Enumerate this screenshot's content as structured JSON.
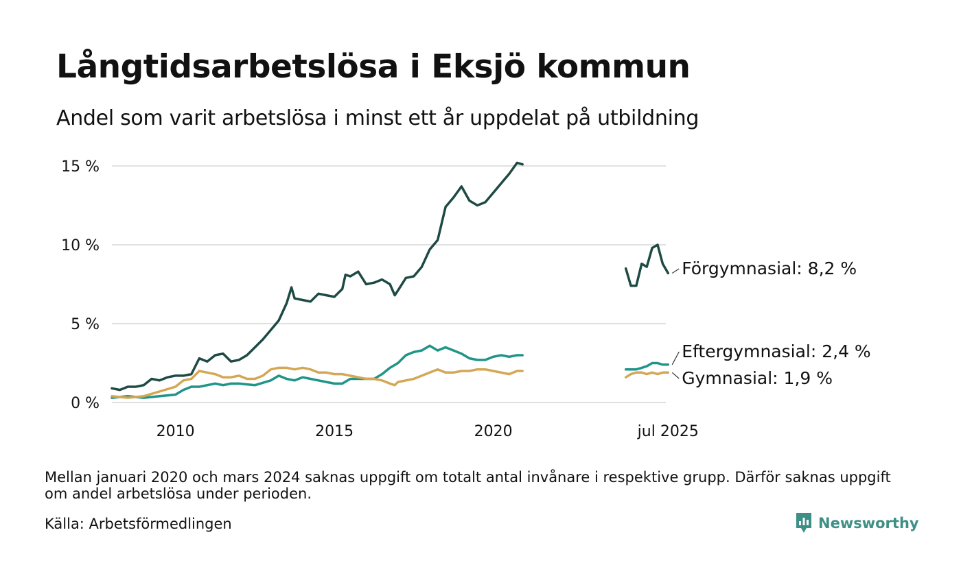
{
  "title": "Långtidsarbetslösa i Eksjö kommun",
  "subtitle": "Andel som varit arbetslösa i minst ett år uppdelat på utbildning",
  "note": "Mellan januari 2020 och mars 2024 saknas uppgift om totalt antal invånare i respektive grupp. Därför saknas uppgift om andel arbetslösa under perioden.",
  "source": "Källa: Arbetsförmedlingen",
  "brand": {
    "name": "Newsworthy",
    "icon": "newsworthy-logo-icon",
    "color": "#3e8f86"
  },
  "chart_data": {
    "type": "line",
    "title": "Långtidsarbetslösa i Eksjö kommun",
    "subtitle": "Andel som varit arbetslösa i minst ett år uppdelat på utbildning",
    "xlabel": "",
    "ylabel": "",
    "x_unit": "year (decimal)",
    "xlim": [
      2008.0,
      2025.75
    ],
    "ylim": [
      0,
      15
    ],
    "y_ticks": [
      {
        "value": 0,
        "label": "0 %"
      },
      {
        "value": 5,
        "label": "5 %"
      },
      {
        "value": 10,
        "label": "10 %"
      },
      {
        "value": 15,
        "label": "15 %"
      }
    ],
    "x_ticks": [
      {
        "value": 2010,
        "label": "2010"
      },
      {
        "value": 2015,
        "label": "2015"
      },
      {
        "value": 2020,
        "label": "2020"
      },
      {
        "value": 2025.5,
        "label": "jul 2025"
      }
    ],
    "grid": "horizontal",
    "legend": "direct labels at right end of lines",
    "gap": {
      "from": 2020.92,
      "to": 2024.17
    },
    "series": [
      {
        "name": "Förgymnasial",
        "label": "Förgymnasial: 8,2 %",
        "color": "#1e4a44",
        "segments": [
          [
            [
              2008.0,
              0.9
            ],
            [
              2008.25,
              0.8
            ],
            [
              2008.5,
              1.0
            ],
            [
              2008.75,
              1.0
            ],
            [
              2009.0,
              1.1
            ],
            [
              2009.25,
              1.5
            ],
            [
              2009.5,
              1.4
            ],
            [
              2009.75,
              1.6
            ],
            [
              2010.0,
              1.7
            ],
            [
              2010.25,
              1.7
            ],
            [
              2010.5,
              1.8
            ],
            [
              2010.75,
              2.8
            ],
            [
              2011.0,
              2.6
            ],
            [
              2011.25,
              3.0
            ],
            [
              2011.5,
              3.1
            ],
            [
              2011.75,
              2.6
            ],
            [
              2012.0,
              2.7
            ],
            [
              2012.25,
              3.0
            ],
            [
              2012.5,
              3.5
            ],
            [
              2012.75,
              4.0
            ],
            [
              2013.0,
              4.6
            ],
            [
              2013.25,
              5.2
            ],
            [
              2013.5,
              6.3
            ],
            [
              2013.65,
              7.3
            ],
            [
              2013.75,
              6.6
            ],
            [
              2014.0,
              6.5
            ],
            [
              2014.25,
              6.4
            ],
            [
              2014.5,
              6.9
            ],
            [
              2014.75,
              6.8
            ],
            [
              2015.0,
              6.7
            ],
            [
              2015.25,
              7.2
            ],
            [
              2015.35,
              8.1
            ],
            [
              2015.5,
              8.0
            ],
            [
              2015.75,
              8.3
            ],
            [
              2016.0,
              7.5
            ],
            [
              2016.25,
              7.6
            ],
            [
              2016.5,
              7.8
            ],
            [
              2016.75,
              7.5
            ],
            [
              2016.9,
              6.8
            ],
            [
              2017.0,
              7.1
            ],
            [
              2017.25,
              7.9
            ],
            [
              2017.5,
              8.0
            ],
            [
              2017.75,
              8.6
            ],
            [
              2018.0,
              9.7
            ],
            [
              2018.25,
              10.3
            ],
            [
              2018.5,
              12.4
            ],
            [
              2018.75,
              13.0
            ],
            [
              2019.0,
              13.7
            ],
            [
              2019.25,
              12.8
            ],
            [
              2019.5,
              12.5
            ],
            [
              2019.75,
              12.7
            ],
            [
              2020.0,
              13.3
            ],
            [
              2020.25,
              13.9
            ],
            [
              2020.5,
              14.5
            ],
            [
              2020.75,
              15.2
            ],
            [
              2020.92,
              15.1
            ]
          ],
          [
            [
              2024.17,
              8.5
            ],
            [
              2024.33,
              7.4
            ],
            [
              2024.5,
              7.4
            ],
            [
              2024.67,
              8.8
            ],
            [
              2024.83,
              8.6
            ],
            [
              2025.0,
              9.8
            ],
            [
              2025.17,
              10.0
            ],
            [
              2025.33,
              8.8
            ],
            [
              2025.5,
              8.2
            ]
          ]
        ]
      },
      {
        "name": "Eftergymnasial",
        "label": "Eftergymnasial: 2,4 %",
        "color": "#1f9488",
        "segments": [
          [
            [
              2008.0,
              0.3
            ],
            [
              2008.5,
              0.4
            ],
            [
              2009.0,
              0.3
            ],
            [
              2009.5,
              0.4
            ],
            [
              2010.0,
              0.5
            ],
            [
              2010.25,
              0.8
            ],
            [
              2010.5,
              1.0
            ],
            [
              2010.75,
              1.0
            ],
            [
              2011.0,
              1.1
            ],
            [
              2011.25,
              1.2
            ],
            [
              2011.5,
              1.1
            ],
            [
              2011.75,
              1.2
            ],
            [
              2012.0,
              1.2
            ],
            [
              2012.5,
              1.1
            ],
            [
              2013.0,
              1.4
            ],
            [
              2013.25,
              1.7
            ],
            [
              2013.5,
              1.5
            ],
            [
              2013.75,
              1.4
            ],
            [
              2014.0,
              1.6
            ],
            [
              2014.25,
              1.5
            ],
            [
              2014.5,
              1.4
            ],
            [
              2014.75,
              1.3
            ],
            [
              2015.0,
              1.2
            ],
            [
              2015.25,
              1.2
            ],
            [
              2015.5,
              1.5
            ],
            [
              2015.75,
              1.5
            ],
            [
              2016.0,
              1.5
            ],
            [
              2016.25,
              1.5
            ],
            [
              2016.5,
              1.8
            ],
            [
              2016.75,
              2.2
            ],
            [
              2017.0,
              2.5
            ],
            [
              2017.25,
              3.0
            ],
            [
              2017.5,
              3.2
            ],
            [
              2017.75,
              3.3
            ],
            [
              2018.0,
              3.6
            ],
            [
              2018.25,
              3.3
            ],
            [
              2018.5,
              3.5
            ],
            [
              2018.75,
              3.3
            ],
            [
              2019.0,
              3.1
            ],
            [
              2019.25,
              2.8
            ],
            [
              2019.5,
              2.7
            ],
            [
              2019.75,
              2.7
            ],
            [
              2020.0,
              2.9
            ],
            [
              2020.25,
              3.0
            ],
            [
              2020.5,
              2.9
            ],
            [
              2020.75,
              3.0
            ],
            [
              2020.92,
              3.0
            ]
          ],
          [
            [
              2024.17,
              2.1
            ],
            [
              2024.33,
              2.1
            ],
            [
              2024.5,
              2.1
            ],
            [
              2024.67,
              2.2
            ],
            [
              2024.83,
              2.3
            ],
            [
              2025.0,
              2.5
            ],
            [
              2025.17,
              2.5
            ],
            [
              2025.33,
              2.4
            ],
            [
              2025.5,
              2.4
            ]
          ]
        ]
      },
      {
        "name": "Gymnasial",
        "label": "Gymnasial: 1,9 %",
        "color": "#d4a756",
        "segments": [
          [
            [
              2008.0,
              0.4
            ],
            [
              2008.5,
              0.3
            ],
            [
              2009.0,
              0.4
            ],
            [
              2009.5,
              0.7
            ],
            [
              2010.0,
              1.0
            ],
            [
              2010.25,
              1.4
            ],
            [
              2010.5,
              1.5
            ],
            [
              2010.75,
              2.0
            ],
            [
              2011.0,
              1.9
            ],
            [
              2011.25,
              1.8
            ],
            [
              2011.5,
              1.6
            ],
            [
              2011.75,
              1.6
            ],
            [
              2012.0,
              1.7
            ],
            [
              2012.25,
              1.5
            ],
            [
              2012.5,
              1.5
            ],
            [
              2012.75,
              1.7
            ],
            [
              2013.0,
              2.1
            ],
            [
              2013.25,
              2.2
            ],
            [
              2013.5,
              2.2
            ],
            [
              2013.75,
              2.1
            ],
            [
              2014.0,
              2.2
            ],
            [
              2014.25,
              2.1
            ],
            [
              2014.5,
              1.9
            ],
            [
              2014.75,
              1.9
            ],
            [
              2015.0,
              1.8
            ],
            [
              2015.25,
              1.8
            ],
            [
              2015.5,
              1.7
            ],
            [
              2015.75,
              1.6
            ],
            [
              2016.0,
              1.5
            ],
            [
              2016.25,
              1.5
            ],
            [
              2016.5,
              1.4
            ],
            [
              2016.75,
              1.2
            ],
            [
              2016.9,
              1.1
            ],
            [
              2017.0,
              1.3
            ],
            [
              2017.25,
              1.4
            ],
            [
              2017.5,
              1.5
            ],
            [
              2017.75,
              1.7
            ],
            [
              2018.0,
              1.9
            ],
            [
              2018.25,
              2.1
            ],
            [
              2018.5,
              1.9
            ],
            [
              2018.75,
              1.9
            ],
            [
              2019.0,
              2.0
            ],
            [
              2019.25,
              2.0
            ],
            [
              2019.5,
              2.1
            ],
            [
              2019.75,
              2.1
            ],
            [
              2020.0,
              2.0
            ],
            [
              2020.25,
              1.9
            ],
            [
              2020.5,
              1.8
            ],
            [
              2020.75,
              2.0
            ],
            [
              2020.92,
              2.0
            ]
          ],
          [
            [
              2024.17,
              1.6
            ],
            [
              2024.33,
              1.8
            ],
            [
              2024.5,
              1.9
            ],
            [
              2024.67,
              1.9
            ],
            [
              2024.83,
              1.8
            ],
            [
              2025.0,
              1.9
            ],
            [
              2025.17,
              1.8
            ],
            [
              2025.33,
              1.9
            ],
            [
              2025.5,
              1.9
            ]
          ]
        ]
      }
    ]
  }
}
